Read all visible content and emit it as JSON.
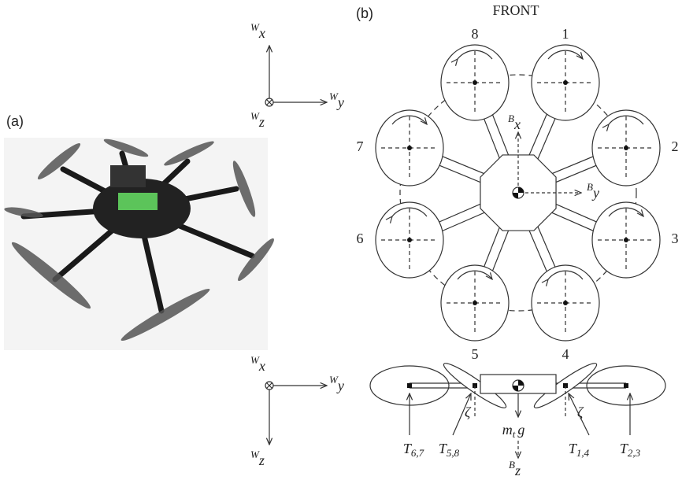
{
  "panels": {
    "a": "(a)",
    "b": "(b)"
  },
  "front": "FRONT",
  "rotors": [
    "1",
    "2",
    "3",
    "4",
    "5",
    "6",
    "7",
    "8"
  ],
  "world_top": {
    "x": {
      "frame": "W",
      "axis": "x"
    },
    "y": {
      "frame": "W",
      "axis": "y"
    },
    "z": {
      "frame": "W",
      "axis": "z"
    }
  },
  "world_side": {
    "x": {
      "frame": "W",
      "axis": "x"
    },
    "y": {
      "frame": "W",
      "axis": "y"
    },
    "z": {
      "frame": "W",
      "axis": "z"
    }
  },
  "body": {
    "x": {
      "frame": "B",
      "axis": "x"
    },
    "y": {
      "frame": "B",
      "axis": "y"
    },
    "z": {
      "frame": "B",
      "axis": "z"
    }
  },
  "tilt": [
    "ζ",
    "ζ"
  ],
  "weight": {
    "symbol": "m",
    "subscript": "t",
    "suffix": "g"
  },
  "thrusts": [
    {
      "symbol": "T",
      "subscript": "6,7"
    },
    {
      "symbol": "T",
      "subscript": "5,8"
    },
    {
      "symbol": "T",
      "subscript": "1,4"
    },
    {
      "symbol": "T",
      "subscript": "2,3"
    }
  ]
}
